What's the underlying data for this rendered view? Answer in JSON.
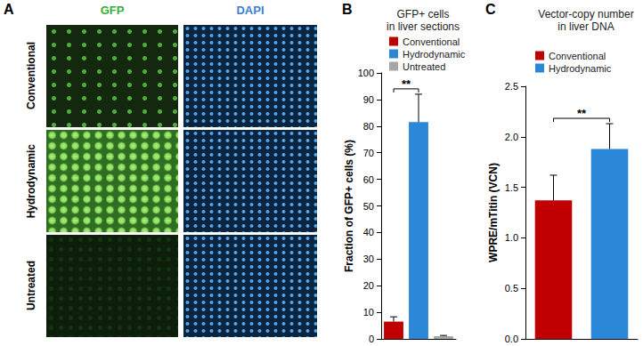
{
  "images": {
    "panel": "A",
    "columns": [
      "GFP",
      "DAPI"
    ],
    "rows": [
      "Conventional",
      "Hydrodynamic",
      "Untreated"
    ]
  },
  "chart_data": [
    {
      "panel": "B",
      "type": "bar",
      "title": "GFP+ cells\nin liver sections",
      "ylabel": "Fraction of GFP+ cells (%)",
      "categories": [
        "Conventional",
        "Hydrodynamic",
        "Untreated"
      ],
      "values": [
        6.5,
        81.5,
        1.0
      ],
      "errors": [
        1.8,
        10.5,
        0.3
      ],
      "colors": [
        "#c00000",
        "#2b87d8",
        "#a6a6a6"
      ],
      "ylim": [
        0,
        100
      ],
      "yticks": [
        0,
        10,
        20,
        30,
        40,
        50,
        60,
        70,
        80,
        90,
        100
      ],
      "grid": false,
      "legend": "top-left",
      "tick_labels": "y",
      "significance": [
        {
          "label": "**",
          "from": "Conventional",
          "to": "Hydrodynamic"
        }
      ]
    },
    {
      "panel": "C",
      "type": "bar",
      "title": "Vector-copy number\nin liver DNA",
      "ylabel": "WPRE/mTitin (VCN)",
      "categories": [
        "Conventional",
        "Hydrodynamic"
      ],
      "values": [
        1.37,
        1.88
      ],
      "errors": [
        0.25,
        0.25
      ],
      "colors": [
        "#c00000",
        "#2b87d8"
      ],
      "ylim": [
        0,
        2.5
      ],
      "yticks": [
        {
          "value": 0,
          "label": "0.0"
        },
        0.5,
        {
          "value": 1,
          "label": "1.0"
        },
        1.5,
        {
          "value": 2,
          "label": "2.0"
        },
        2.5
      ],
      "grid": false,
      "legend": "top-left",
      "tick_labels": "y",
      "significance": [
        {
          "label": "**",
          "from": "Conventional",
          "to": "Hydrodynamic"
        }
      ]
    }
  ]
}
